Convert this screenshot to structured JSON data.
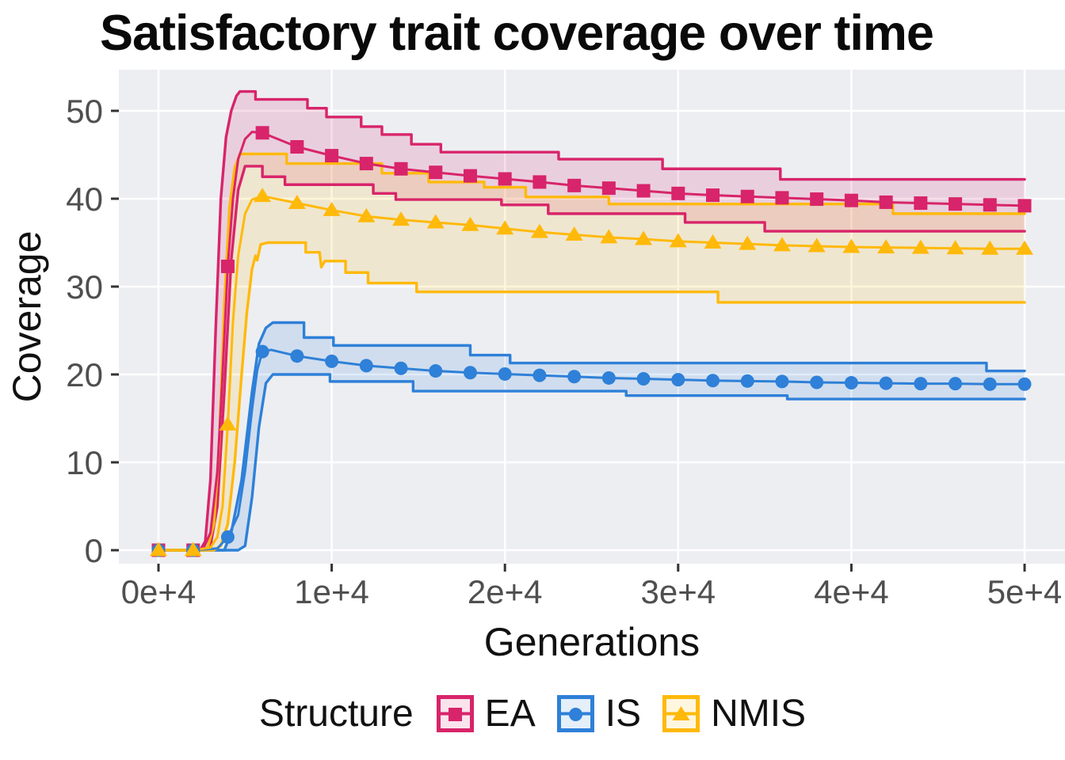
{
  "title": "Satisfactory trait coverage over time",
  "axes": {
    "x": {
      "label": "Generations",
      "tick_labels": [
        "0e+4",
        "1e+4",
        "2e+4",
        "3e+4",
        "4e+4",
        "5e+4"
      ],
      "tick_values": [
        0,
        10000,
        20000,
        30000,
        40000,
        50000
      ],
      "range": [
        0,
        50000
      ]
    },
    "y": {
      "label": "Coverage",
      "tick_labels": [
        "0",
        "10",
        "20",
        "30",
        "40",
        "50"
      ],
      "tick_values": [
        0,
        10,
        20,
        30,
        40,
        50
      ],
      "range": [
        0,
        52.5
      ]
    }
  },
  "legend": {
    "title": "Structure",
    "items": [
      {
        "label": "EA",
        "marker": "square",
        "color": "#D8246A"
      },
      {
        "label": "IS",
        "marker": "circle",
        "color": "#2E80D8"
      },
      {
        "label": "NMIS",
        "marker": "triangle",
        "color": "#FFB90A"
      }
    ]
  },
  "style": {
    "panel_bg": "#EDEEF2",
    "grid_color": "#FFFFFF",
    "tick_text_color": "#4F4F4F",
    "tick_mark_color": "#333333",
    "ribbon_alpha": 0.15
  },
  "chart_data": {
    "type": "line",
    "title": "Satisfactory trait coverage over time",
    "xlabel": "Generations",
    "ylabel": "Coverage",
    "xlim": [
      0,
      50000
    ],
    "ylim": [
      0,
      52.5
    ],
    "grid": "major-white-on-gray",
    "legend_position": "bottom",
    "marker_interval": 2000,
    "series": [
      {
        "name": "EA",
        "marker": "square",
        "color": "#D8246A",
        "mean": [
          [
            0,
            0
          ],
          [
            2000,
            0
          ],
          [
            2600,
            0.2
          ],
          [
            3000,
            2
          ],
          [
            3400,
            9
          ],
          [
            3700,
            20
          ],
          [
            4000,
            32.3
          ],
          [
            4300,
            40
          ],
          [
            4600,
            44.5
          ],
          [
            5000,
            46.8
          ],
          [
            5400,
            47.6
          ],
          [
            6000,
            47.5
          ],
          [
            8000,
            45.9
          ],
          [
            10000,
            44.9
          ],
          [
            12000,
            44
          ],
          [
            14000,
            43.4
          ],
          [
            16000,
            43
          ],
          [
            18000,
            42.6
          ],
          [
            20000,
            42.25
          ],
          [
            22000,
            41.9
          ],
          [
            24000,
            41.5
          ],
          [
            26000,
            41.2
          ],
          [
            28000,
            40.9
          ],
          [
            30000,
            40.6
          ],
          [
            32000,
            40.4
          ],
          [
            34000,
            40.25
          ],
          [
            36000,
            40.1
          ],
          [
            38000,
            39.95
          ],
          [
            40000,
            39.8
          ],
          [
            42000,
            39.6
          ],
          [
            44000,
            39.5
          ],
          [
            46000,
            39.4
          ],
          [
            48000,
            39.3
          ],
          [
            50000,
            39.2
          ]
        ],
        "upper": [
          [
            0,
            0
          ],
          [
            2400,
            0
          ],
          [
            2700,
            1
          ],
          [
            3000,
            8
          ],
          [
            3300,
            25
          ],
          [
            3600,
            40
          ],
          [
            3900,
            47
          ],
          [
            4200,
            50
          ],
          [
            4500,
            51.7
          ],
          [
            4700,
            52.2
          ],
          [
            5600,
            52.2
          ],
          [
            5600,
            51.3
          ],
          [
            8600,
            51.3
          ],
          [
            8600,
            50.3
          ],
          [
            9700,
            50.3
          ],
          [
            9700,
            49.3
          ],
          [
            11700,
            49.3
          ],
          [
            11700,
            48.2
          ],
          [
            12900,
            48.2
          ],
          [
            12900,
            47.3
          ],
          [
            14600,
            47.3
          ],
          [
            14600,
            46.2
          ],
          [
            16300,
            46.2
          ],
          [
            16300,
            45.3
          ],
          [
            23100,
            45.3
          ],
          [
            23100,
            44.5
          ],
          [
            29100,
            44.5
          ],
          [
            29100,
            43.4
          ],
          [
            35900,
            43.4
          ],
          [
            35900,
            42.2
          ],
          [
            50000,
            42.2
          ]
        ],
        "lower": [
          [
            0,
            0
          ],
          [
            2600,
            0
          ],
          [
            3000,
            0.5
          ],
          [
            3400,
            5
          ],
          [
            3800,
            18
          ],
          [
            4200,
            33
          ],
          [
            4600,
            41
          ],
          [
            5000,
            43.7
          ],
          [
            6000,
            43.7
          ],
          [
            6000,
            42.5
          ],
          [
            7300,
            42.5
          ],
          [
            7300,
            41.6
          ],
          [
            12400,
            41.6
          ],
          [
            12400,
            40.6
          ],
          [
            13700,
            40.6
          ],
          [
            13700,
            39.9
          ],
          [
            19800,
            39.9
          ],
          [
            19800,
            39.3
          ],
          [
            22500,
            39.3
          ],
          [
            22500,
            38.3
          ],
          [
            30400,
            38.3
          ],
          [
            30400,
            37.3
          ],
          [
            35000,
            37.3
          ],
          [
            35000,
            36.3
          ],
          [
            50000,
            36.3
          ]
        ]
      },
      {
        "name": "IS",
        "marker": "circle",
        "color": "#2E80D8",
        "mean": [
          [
            0,
            0
          ],
          [
            2000,
            0
          ],
          [
            3400,
            0.2
          ],
          [
            4000,
            1.5
          ],
          [
            4600,
            4
          ],
          [
            5000,
            9
          ],
          [
            5400,
            16
          ],
          [
            5700,
            20.5
          ],
          [
            6000,
            22.6
          ],
          [
            6500,
            22.8
          ],
          [
            8000,
            22.1
          ],
          [
            10000,
            21.5
          ],
          [
            12000,
            21
          ],
          [
            14000,
            20.7
          ],
          [
            16000,
            20.4
          ],
          [
            18000,
            20.2
          ],
          [
            20000,
            20.05
          ],
          [
            22000,
            19.9
          ],
          [
            24000,
            19.75
          ],
          [
            26000,
            19.6
          ],
          [
            28000,
            19.5
          ],
          [
            30000,
            19.4
          ],
          [
            32000,
            19.3
          ],
          [
            34000,
            19.25
          ],
          [
            36000,
            19.2
          ],
          [
            38000,
            19.1
          ],
          [
            40000,
            19.05
          ],
          [
            42000,
            19
          ],
          [
            44000,
            18.95
          ],
          [
            46000,
            18.95
          ],
          [
            48000,
            18.9
          ],
          [
            50000,
            18.9
          ]
        ],
        "upper": [
          [
            0,
            0
          ],
          [
            3800,
            0
          ],
          [
            4200,
            2
          ],
          [
            4800,
            8
          ],
          [
            5400,
            18
          ],
          [
            5800,
            23.5
          ],
          [
            6200,
            25.3
          ],
          [
            6600,
            25.9
          ],
          [
            8400,
            25.9
          ],
          [
            8400,
            24.2
          ],
          [
            10100,
            24.2
          ],
          [
            10100,
            23.3
          ],
          [
            18000,
            23.3
          ],
          [
            18000,
            22.2
          ],
          [
            20300,
            22.2
          ],
          [
            20300,
            21.3
          ],
          [
            47800,
            21.3
          ],
          [
            47800,
            20.4
          ],
          [
            50000,
            20.4
          ]
        ],
        "lower": [
          [
            0,
            0
          ],
          [
            4600,
            0
          ],
          [
            5000,
            0.5
          ],
          [
            5400,
            6
          ],
          [
            5800,
            14
          ],
          [
            6200,
            19
          ],
          [
            6600,
            20
          ],
          [
            9900,
            20
          ],
          [
            9900,
            19.2
          ],
          [
            14700,
            19.2
          ],
          [
            14700,
            18.1
          ],
          [
            27000,
            18.1
          ],
          [
            27000,
            17.6
          ],
          [
            36300,
            17.6
          ],
          [
            36300,
            17.2
          ],
          [
            50000,
            17.2
          ]
        ]
      },
      {
        "name": "NMIS",
        "marker": "triangle",
        "color": "#FFB90A",
        "mean": [
          [
            0,
            0
          ],
          [
            2000,
            0
          ],
          [
            3000,
            0.3
          ],
          [
            3400,
            1.5
          ],
          [
            3700,
            5
          ],
          [
            4000,
            14.3
          ],
          [
            4300,
            26
          ],
          [
            4600,
            33.5
          ],
          [
            5000,
            38.3
          ],
          [
            5400,
            39.9
          ],
          [
            6000,
            40.3
          ],
          [
            8000,
            39.5
          ],
          [
            10000,
            38.7
          ],
          [
            12000,
            38
          ],
          [
            14000,
            37.6
          ],
          [
            16000,
            37.3
          ],
          [
            18000,
            37
          ],
          [
            20000,
            36.6
          ],
          [
            22000,
            36.2
          ],
          [
            24000,
            35.9
          ],
          [
            26000,
            35.6
          ],
          [
            28000,
            35.4
          ],
          [
            30000,
            35.15
          ],
          [
            32000,
            35
          ],
          [
            34000,
            34.85
          ],
          [
            36000,
            34.7
          ],
          [
            38000,
            34.6
          ],
          [
            40000,
            34.5
          ],
          [
            42000,
            34.45
          ],
          [
            44000,
            34.4
          ],
          [
            46000,
            34.35
          ],
          [
            48000,
            34.3
          ],
          [
            50000,
            34.3
          ]
        ],
        "upper": [
          [
            0,
            0
          ],
          [
            2800,
            0
          ],
          [
            3200,
            3
          ],
          [
            3500,
            12
          ],
          [
            3800,
            28
          ],
          [
            4100,
            39
          ],
          [
            4400,
            43.5
          ],
          [
            4700,
            45.1
          ],
          [
            7400,
            45.1
          ],
          [
            7400,
            44
          ],
          [
            12900,
            44
          ],
          [
            12900,
            42.9
          ],
          [
            15600,
            42.9
          ],
          [
            15600,
            41.9
          ],
          [
            18800,
            41.9
          ],
          [
            18800,
            41.3
          ],
          [
            21200,
            41.3
          ],
          [
            21200,
            40.2
          ],
          [
            26000,
            40.2
          ],
          [
            26000,
            39.4
          ],
          [
            42400,
            39.4
          ],
          [
            42400,
            38.3
          ],
          [
            50000,
            38.3
          ]
        ],
        "lower": [
          [
            0,
            0
          ],
          [
            3200,
            0
          ],
          [
            3600,
            0.5
          ],
          [
            4000,
            3
          ],
          [
            4400,
            10
          ],
          [
            4800,
            20
          ],
          [
            5100,
            27
          ],
          [
            5400,
            32
          ],
          [
            5600,
            33.5
          ],
          [
            5700,
            33
          ],
          [
            5900,
            34.8
          ],
          [
            6300,
            35
          ],
          [
            8500,
            35
          ],
          [
            8500,
            33.9
          ],
          [
            9300,
            33.9
          ],
          [
            9400,
            32.2
          ],
          [
            9600,
            32.9
          ],
          [
            10800,
            32.9
          ],
          [
            10800,
            31.6
          ],
          [
            12100,
            31.6
          ],
          [
            12100,
            30.4
          ],
          [
            14900,
            30.4
          ],
          [
            14900,
            29.4
          ],
          [
            32300,
            29.4
          ],
          [
            32300,
            28.2
          ],
          [
            50000,
            28.2
          ]
        ]
      }
    ]
  }
}
